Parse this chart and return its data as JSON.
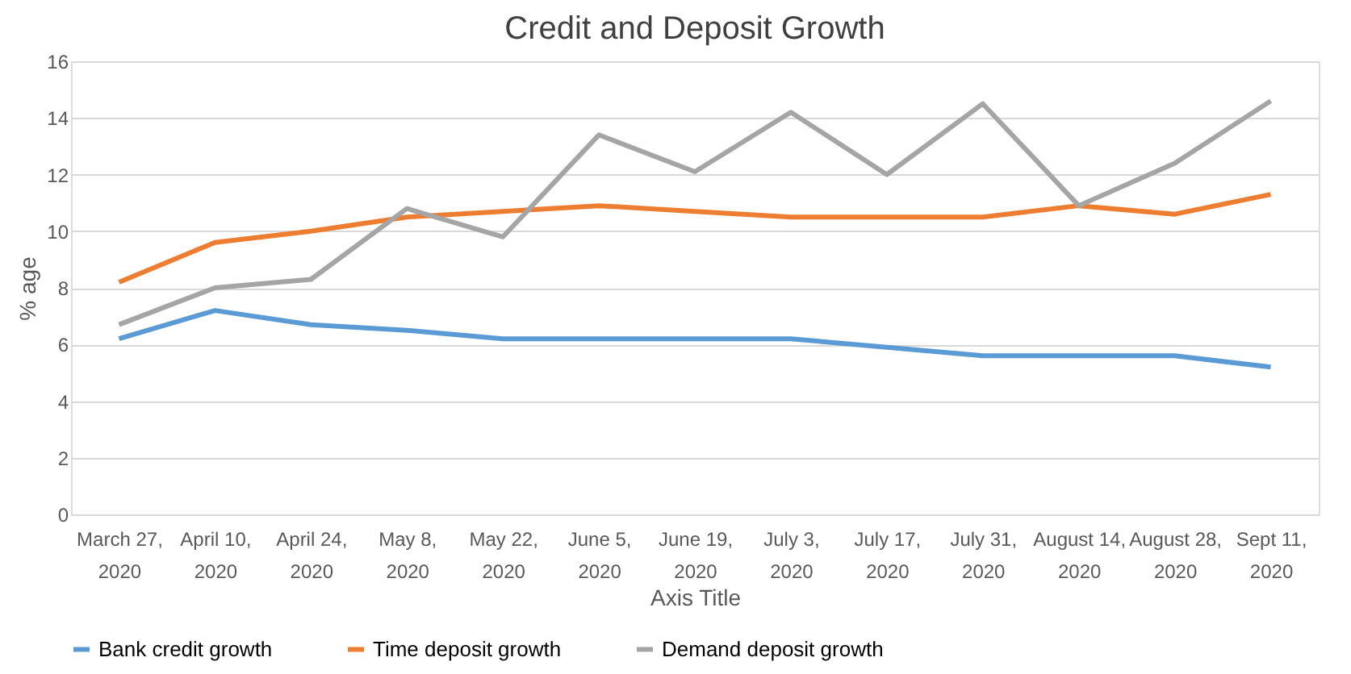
{
  "chart_data": {
    "type": "line",
    "title": "Credit and Deposit Growth",
    "xlabel": "Axis Title",
    "ylabel": "% age",
    "categories": [
      "March 27, 2020",
      "April 10, 2020",
      "April 24, 2020",
      "May 8, 2020",
      "May 22, 2020",
      "June 5, 2020",
      "June 19, 2020",
      "July 3, 2020",
      "July 17, 2020",
      "July 31, 2020",
      "August 14, 2020",
      "August 28, 2020",
      "Sept 11, 2020"
    ],
    "series": [
      {
        "name": "Bank credit growth",
        "color": "#5b9bd5",
        "values": [
          6.2,
          7.2,
          6.7,
          6.5,
          6.2,
          6.2,
          6.2,
          6.2,
          5.9,
          5.6,
          5.6,
          5.6,
          5.2
        ]
      },
      {
        "name": "Time deposit growth",
        "color": "#ed7d31",
        "values": [
          8.2,
          9.6,
          10.0,
          10.5,
          10.7,
          10.9,
          10.7,
          10.5,
          10.5,
          10.5,
          10.9,
          10.6,
          11.3
        ]
      },
      {
        "name": "Demand deposit growth",
        "color": "#a5a5a5",
        "values": [
          6.7,
          8.0,
          8.3,
          10.8,
          9.8,
          13.4,
          12.1,
          14.2,
          12.0,
          14.5,
          10.9,
          12.4,
          14.6
        ]
      }
    ],
    "ylim": [
      0,
      16
    ],
    "yticks": [
      0,
      2,
      4,
      6,
      8,
      10,
      12,
      14,
      16
    ],
    "grid": "y",
    "legend": "bottom",
    "marker": "none",
    "line_style": "solid"
  }
}
